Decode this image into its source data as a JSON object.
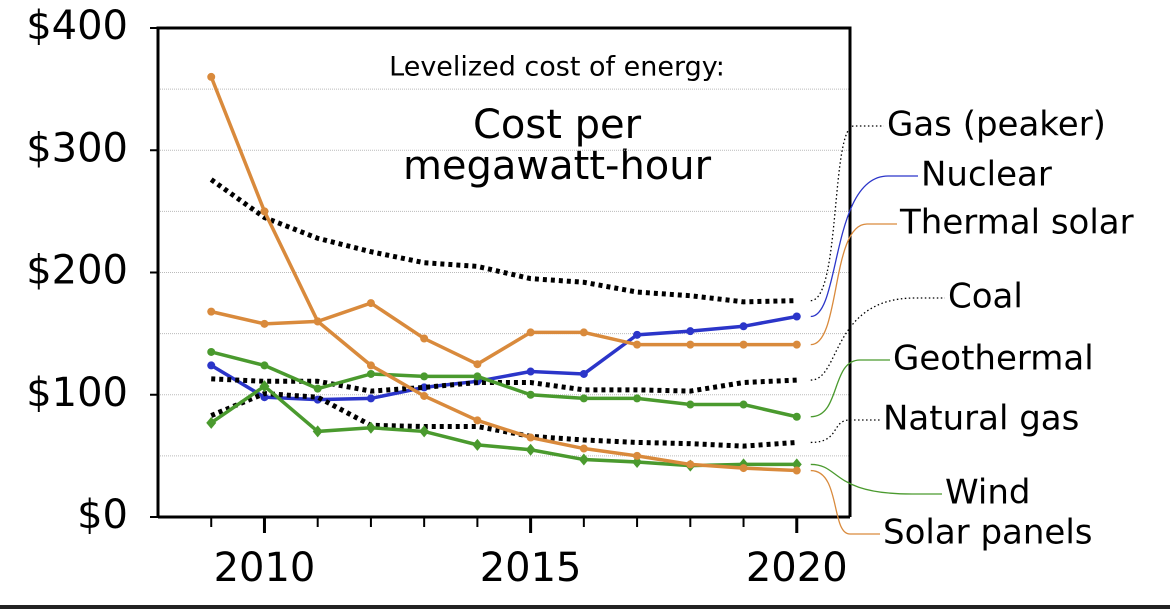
{
  "chart_data": {
    "type": "line",
    "title": "Levelized cost of energy:",
    "subtitle_lines": [
      "Cost per",
      "megawatt-hour"
    ],
    "x": [
      2009,
      2010,
      2011,
      2012,
      2013,
      2014,
      2015,
      2016,
      2017,
      2018,
      2019,
      2020
    ],
    "xlim": [
      2008,
      2021
    ],
    "xticks": [
      2010,
      2015,
      2020
    ],
    "minor_xticks": [
      2009,
      2011,
      2012,
      2013,
      2014,
      2016,
      2017,
      2018,
      2019
    ],
    "ylim": [
      0,
      400
    ],
    "yticks": [
      {
        "value": 0,
        "label": "$0"
      },
      {
        "value": 100,
        "label": "$100"
      },
      {
        "value": 200,
        "label": "$200"
      },
      {
        "value": 300,
        "label": "$300"
      },
      {
        "value": 400,
        "label": "$400"
      }
    ],
    "minor_yticks": [
      50,
      150,
      250,
      350
    ],
    "grid": true,
    "series": [
      {
        "name": "Gas (peaker)",
        "color": "#000000",
        "dash": true,
        "marker": "none",
        "values": [
          276,
          245,
          228,
          217,
          208,
          205,
          195,
          192,
          184,
          181,
          176,
          177
        ]
      },
      {
        "name": "Nuclear",
        "color": "#2b35c9",
        "dash": false,
        "marker": "circle",
        "values": [
          124,
          98,
          96,
          97,
          106,
          111,
          119,
          117,
          149,
          152,
          156,
          164
        ]
      },
      {
        "name": "Thermal solar",
        "color": "#d98a3c",
        "dash": false,
        "marker": "circle",
        "values": [
          168,
          158,
          160,
          175,
          146,
          125,
          151,
          151,
          141,
          141,
          141,
          141
        ]
      },
      {
        "name": "Coal",
        "color": "#000000",
        "dash": true,
        "marker": "none",
        "values": [
          113,
          111,
          111,
          103,
          106,
          110,
          110,
          104,
          104,
          103,
          110,
          112
        ]
      },
      {
        "name": "Geothermal",
        "color": "#4a9a2e",
        "dash": false,
        "marker": "circle",
        "values": [
          135,
          124,
          105,
          117,
          115,
          115,
          100,
          97,
          97,
          92,
          92,
          82
        ]
      },
      {
        "name": "Natural gas",
        "color": "#000000",
        "dash": true,
        "marker": "none",
        "values": [
          83,
          101,
          98,
          75,
          74,
          74,
          66,
          63,
          61,
          60,
          58,
          61
        ]
      },
      {
        "name": "Wind",
        "color": "#4a9a2e",
        "dash": false,
        "marker": "diamond",
        "values": [
          77,
          107,
          70,
          73,
          70,
          59,
          55,
          47,
          45,
          42,
          43,
          43
        ]
      },
      {
        "name": "Solar panels",
        "color": "#d98a3c",
        "dash": false,
        "marker": "circle",
        "values": [
          360,
          250,
          160,
          124,
          99,
          79,
          65,
          56,
          50,
          43,
          40,
          38
        ]
      }
    ]
  }
}
